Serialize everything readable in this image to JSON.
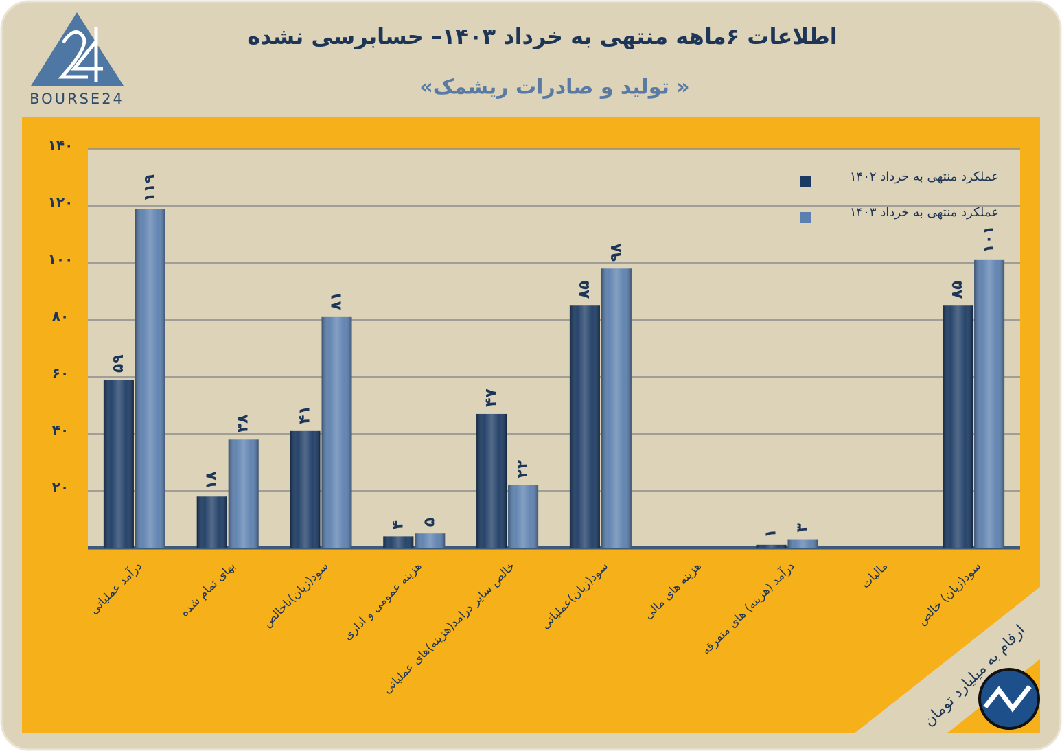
{
  "chart_data": {
    "type": "bar",
    "title": "اطلاعات  ۶ماهه منتهی به خرداد  ۱۴۰۳– حسابرسی نشده",
    "subtitle": "«تولید و صادرات ریشمک »",
    "logo_text": "BOURSE24",
    "note": "ارقام به میلیارد تومان",
    "categories": [
      "درآمد عملیاتی",
      "بهای تمام شده",
      "سود(زیان)ناخالص",
      "هزینه عمومی و اداری",
      "خالص سایر درامد(هزینه)های عملیاتی",
      "سود(زیان)عملیاتی",
      "هزینه های مالی",
      "درآمد (هزینه) های متفرقه",
      "مالیات",
      "سود(زیان) خالص"
    ],
    "series": [
      {
        "name": "عملکرد منتهی به خرداد ۱۴۰۲",
        "color": "#1b3a63",
        "values": [
          59,
          18,
          41,
          4,
          47,
          85,
          null,
          1,
          null,
          85
        ],
        "value_labels": [
          "۵۹",
          "۱۸",
          "۴۱",
          "۴",
          "۴۷",
          "۸۵",
          null,
          "۱",
          null,
          "۸۵"
        ]
      },
      {
        "name": "عملکرد منتهی به خرداد ۱۴۰۳",
        "color": "#5b7fae",
        "values": [
          119,
          38,
          81,
          5,
          22,
          98,
          null,
          3,
          null,
          101
        ],
        "value_labels": [
          "۱۱۹",
          "۳۸",
          "۸۱",
          "۵",
          "۲۲",
          "۹۸",
          null,
          "۳",
          null,
          "۱۰۱"
        ]
      }
    ],
    "ylim": [
      0,
      140
    ],
    "yticks": [
      {
        "value": 20,
        "label": "۲۰"
      },
      {
        "value": 40,
        "label": "۴۰"
      },
      {
        "value": 60,
        "label": "۶۰"
      },
      {
        "value": 80,
        "label": "۸۰"
      },
      {
        "value": 100,
        "label": "۱۰۰"
      },
      {
        "value": 120,
        "label": "۱۲۰"
      },
      {
        "value": 140,
        "label": "۱۴۰"
      }
    ],
    "grid": true,
    "legend": "top-right"
  }
}
